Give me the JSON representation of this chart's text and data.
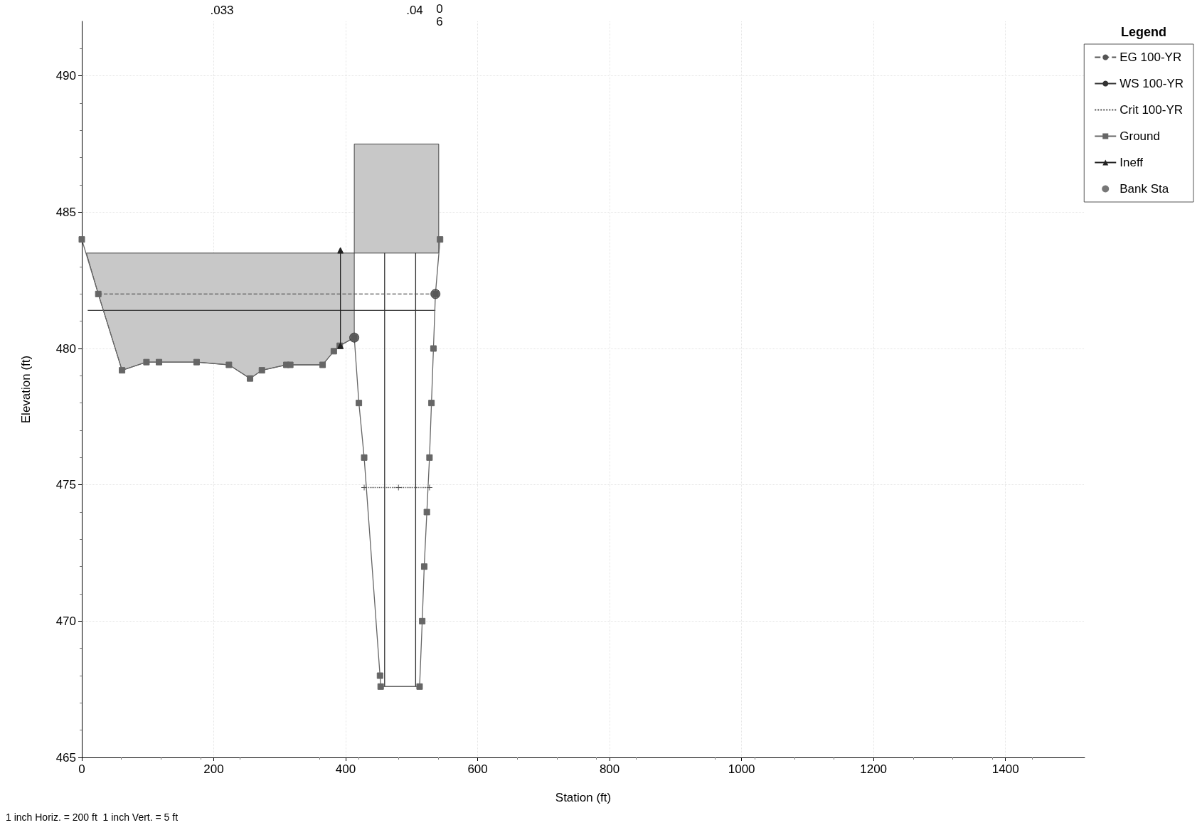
{
  "chart_data": {
    "type": "line",
    "xlabel": "Station (ft)",
    "ylabel": "Elevation (ft)",
    "legend_title": "Legend",
    "xlim": [
      0,
      1520
    ],
    "ylim": [
      465,
      492
    ],
    "xticks": [
      0,
      200,
      400,
      600,
      800,
      1000,
      1200,
      1400
    ],
    "yticks": [
      465,
      470,
      475,
      480,
      485,
      490
    ],
    "grid": true,
    "legend": "top right",
    "annotations": [
      ".033",
      ".04",
      "0",
      "6",
      "1 inch Horiz. = 200 ft  1 inch Vert. = 5 ft"
    ],
    "series": [
      {
        "type": "area",
        "color": "#c8c8c8",
        "x": [
          7,
          413,
          413,
          391,
          382,
          365,
          316,
          310,
          273,
          255,
          223,
          174,
          117,
          98,
          61,
          25,
          7
        ],
        "values": [
          483.5,
          483.5,
          480.4,
          480.1,
          479.9,
          479.4,
          479.4,
          479.4,
          479.2,
          478.9,
          479.4,
          479.5,
          479.5,
          479.5,
          479.2,
          482.0,
          483.5
        ]
      },
      {
        "type": "area",
        "color": "#c8c8c8",
        "x": [
          413,
          541,
          541,
          413,
          413
        ],
        "values": [
          483.5,
          483.5,
          487.5,
          487.5,
          483.5
        ]
      },
      {
        "color": "#333333",
        "line_style": "solid",
        "marker": "none",
        "x": [
          459,
          459,
          506,
          506
        ],
        "values": [
          483.5,
          467.6,
          467.6,
          483.5
        ]
      },
      {
        "name": "EG 100-YR",
        "color": "#555555",
        "line_style": "dashed",
        "marker": "none",
        "x": [
          25,
          536
        ],
        "values": [
          482.0,
          482.0
        ]
      },
      {
        "name": "WS 100-YR",
        "color": "#333333",
        "line_style": "solid",
        "marker": "none",
        "x": [
          9,
          536
        ],
        "values": [
          481.4,
          481.4
        ]
      },
      {
        "name": "Crit 100-YR",
        "color": "#555555",
        "line_style": "dotted",
        "marker": "cross",
        "x": [
          428,
          480,
          527
        ],
        "values": [
          474.9,
          474.9,
          474.9
        ]
      },
      {
        "name": "Ground",
        "color": "#666666",
        "line_style": "solid",
        "marker": "square",
        "x": [
          0,
          25,
          61,
          98,
          117,
          174,
          223,
          255,
          273,
          310,
          316,
          365,
          382,
          391,
          413,
          420,
          428,
          452,
          453,
          512,
          516,
          519,
          523,
          527,
          530,
          533,
          536,
          543
        ],
        "values": [
          484.0,
          482.0,
          479.2,
          479.5,
          479.5,
          479.5,
          479.4,
          478.9,
          479.2,
          479.4,
          479.4,
          479.4,
          479.9,
          480.1,
          480.4,
          478.0,
          476.0,
          468.0,
          467.6,
          467.6,
          470.0,
          472.0,
          474.0,
          476.0,
          478.0,
          480.0,
          482.0,
          484.0
        ]
      },
      {
        "name": "Ineff",
        "color": "#222222",
        "line_style": "solid",
        "marker": "triangle",
        "x": [
          392,
          392
        ],
        "values": [
          480.1,
          483.6
        ]
      },
      {
        "name": "Bank Sta",
        "type": "scatter",
        "color": "#555555",
        "marker": "circle",
        "x": [
          413,
          536
        ],
        "values": [
          480.4,
          482.0
        ]
      }
    ]
  }
}
